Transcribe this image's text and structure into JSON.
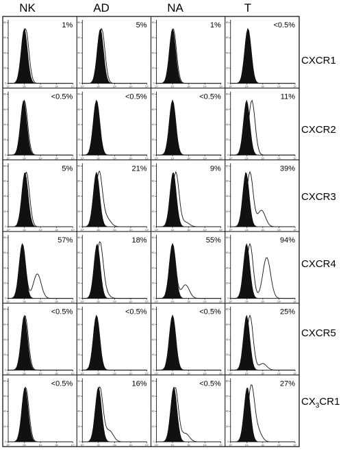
{
  "chart_data": {
    "type": "histogram-grid",
    "columns": [
      "NK",
      "AD",
      "NA",
      "T"
    ],
    "rows": [
      {
        "label": "CXCR1",
        "label_main": "CXCR1",
        "label_sub": "",
        "label_tail": "",
        "percents": [
          "1%",
          "5%",
          "1%",
          "<0.5%"
        ],
        "peaks": [
          [
            0.25,
            0.27
          ],
          [
            0.28,
            0.3
          ],
          [
            0.25,
            0.26
          ],
          [
            0.27,
            0.27
          ]
        ],
        "shoulder": [
          [
            0,
            0
          ],
          [
            0,
            0
          ],
          [
            0,
            0
          ],
          [
            0,
            0
          ]
        ]
      },
      {
        "label": "CXCR2",
        "label_main": "CXCR2",
        "label_sub": "",
        "label_tail": "",
        "percents": [
          "<0.5%",
          "<0.5%",
          "<0.5%",
          "11%"
        ],
        "peaks": [
          [
            0.24,
            0.25
          ],
          [
            0.22,
            0.22
          ],
          [
            0.25,
            0.25
          ],
          [
            0.25,
            0.33
          ]
        ],
        "shoulder": [
          [
            0,
            0
          ],
          [
            0,
            0
          ],
          [
            0,
            0
          ],
          [
            0,
            0
          ]
        ]
      },
      {
        "label": "CXCR3",
        "label_main": "CXCR3",
        "label_sub": "",
        "label_tail": "",
        "percents": [
          "5%",
          "21%",
          "9%",
          "39%"
        ],
        "peaks": [
          [
            0.26,
            0.28
          ],
          [
            0.22,
            0.26
          ],
          [
            0.26,
            0.3
          ],
          [
            0.24,
            0.3
          ]
        ],
        "shoulder": [
          [
            0,
            0
          ],
          [
            0.15,
            0.38
          ],
          [
            0.08,
            0.45
          ],
          [
            0.3,
            0.48
          ]
        ]
      },
      {
        "label": "CXCR4",
        "label_main": "CXCR4",
        "label_sub": "",
        "label_tail": "",
        "percents": [
          "57%",
          "18%",
          "55%",
          "94%"
        ],
        "peaks": [
          [
            0.22,
            0.22
          ],
          [
            0.23,
            0.27
          ],
          [
            0.25,
            0.25
          ],
          [
            0.25,
            0.3
          ]
        ],
        "shoulder": [
          [
            0.45,
            0.45
          ],
          [
            0.1,
            0.35
          ],
          [
            0.25,
            0.45
          ],
          [
            0.75,
            0.56
          ]
        ]
      },
      {
        "label": "CXCR5",
        "label_main": "CXCR5",
        "label_sub": "",
        "label_tail": "",
        "percents": [
          "<0.5%",
          "<0.5%",
          "<0.5%",
          "25%"
        ],
        "peaks": [
          [
            0.25,
            0.26
          ],
          [
            0.22,
            0.22
          ],
          [
            0.25,
            0.25
          ],
          [
            0.25,
            0.3
          ]
        ],
        "shoulder": [
          [
            0,
            0
          ],
          [
            0,
            0
          ],
          [
            0,
            0
          ],
          [
            0.12,
            0.5
          ]
        ]
      },
      {
        "label": "CX3CR1",
        "label_main": "CX",
        "label_sub": "3",
        "label_tail": "CR1",
        "percents": [
          "<0.5%",
          "16%",
          "<0.5%",
          "27%"
        ],
        "peaks": [
          [
            0.26,
            0.27
          ],
          [
            0.25,
            0.27
          ],
          [
            0.27,
            0.29
          ],
          [
            0.26,
            0.32
          ]
        ],
        "shoulder": [
          [
            0,
            0
          ],
          [
            0.2,
            0.42
          ],
          [
            0.15,
            0.45
          ],
          [
            0.2,
            0.42
          ]
        ]
      }
    ],
    "x_ticks": [
      "10⁰",
      "10¹",
      "10²",
      "10³",
      "10⁴"
    ],
    "y_ticks": [
      "0",
      "20",
      "40",
      "60",
      "80"
    ]
  }
}
